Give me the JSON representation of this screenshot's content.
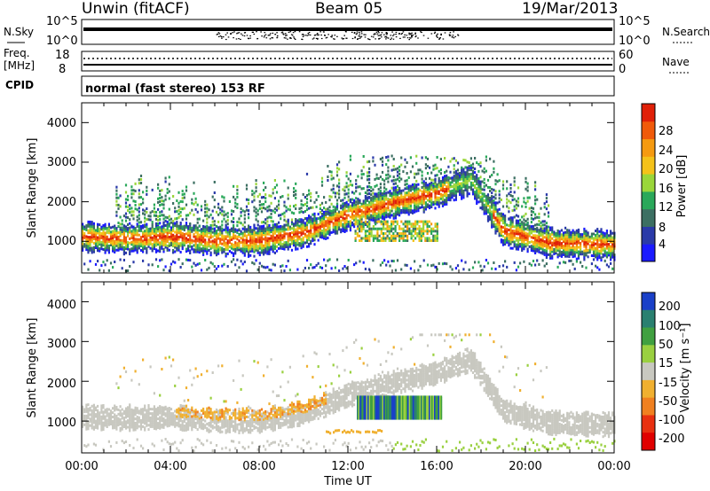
{
  "header": {
    "station": "Unwin (fitACF)",
    "beam": "Beam 05",
    "date": "19/Mar/2013"
  },
  "top_panels": {
    "nsky_label": "N.Sky",
    "nsky_ticks": [
      "10^5",
      "10^0"
    ],
    "nsearch_label": "N.Search",
    "nsearch_ticks": [
      "10^5",
      "10^0"
    ],
    "freq_label": "Freq.",
    "freq_unit": "[MHz]",
    "freq_ticks": [
      "18",
      "8"
    ],
    "nave_label": "Nave",
    "nave_ticks": [
      "60",
      "0"
    ],
    "cpid_label": "CPID",
    "cpid_text": "normal (fast stereo) 153 RF"
  },
  "chart_data": [
    {
      "type": "heatmap",
      "panel": "power",
      "ylabel": "Slant Range [km]",
      "ylim": [
        200,
        4500
      ],
      "yticks": [
        "1000",
        "2000",
        "3000",
        "4000"
      ],
      "xlim": [
        "00:00",
        "24:00"
      ],
      "colorbar": {
        "label": "Power [dB]",
        "ticks": [
          "4",
          "8",
          "12",
          "16",
          "20",
          "24",
          "28"
        ],
        "colors": [
          "#1a1aff",
          "#2a3aa8",
          "#3c6f62",
          "#2aa85a",
          "#9ad63a",
          "#f4c21a",
          "#f59a10",
          "#f05a0a",
          "#e02008"
        ]
      },
      "echo_bands": [
        {
          "name": "",
          "x": [
            "00:00",
            "02:00",
            "04:00",
            "06:00",
            "08:00",
            "10:00",
            "12:00",
            "14:00",
            "16:00",
            "17:30",
            "19:00",
            "21:00",
            "24:00"
          ],
          "y": [
            1150,
            1100,
            1150,
            1050,
            1050,
            1250,
            1700,
            2000,
            2250,
            2600,
            1300,
            1000,
            950
          ]
        }
      ]
    },
    {
      "type": "heatmap",
      "panel": "velocity",
      "ylabel": "Slant Range [km]",
      "ylim": [
        200,
        4500
      ],
      "yticks": [
        "1000",
        "2000",
        "3000",
        "4000"
      ],
      "xlabel": "Time UT",
      "xticks": [
        "00:00",
        "04:00",
        "08:00",
        "12:00",
        "16:00",
        "20:00",
        "00:00"
      ],
      "colorbar": {
        "label": "Velocity [m s⁻¹]",
        "ticks": [
          "200",
          "100",
          "50",
          "15",
          "-15",
          "-50",
          "-100",
          "-200"
        ],
        "colors": [
          "#1a40c8",
          "#2a8070",
          "#40a040",
          "#9ad040",
          "#c8c8c0",
          "#f0b030",
          "#f08020",
          "#e83010",
          "#e00000"
        ]
      }
    }
  ]
}
